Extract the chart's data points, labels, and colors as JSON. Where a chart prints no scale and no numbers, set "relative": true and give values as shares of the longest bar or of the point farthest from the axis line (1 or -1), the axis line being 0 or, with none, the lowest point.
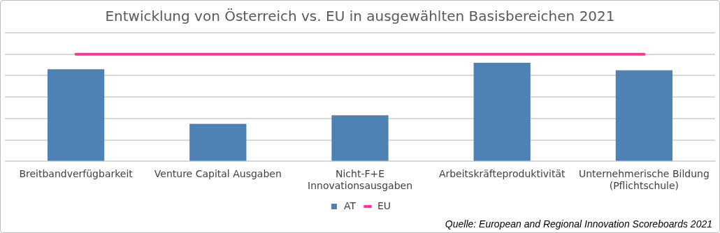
{
  "chart_data": {
    "type": "bar",
    "title": "Entwicklung von Österreich vs. EU in ausgewählten Basisbereichen 2021",
    "categories": [
      "Breitbandverfügbarkeit",
      "Venture Capital Ausgaben",
      "Nicht-F+E Innovationsausgaben",
      "Arbeitskräfteproduktivität",
      "Unternehmerische Bildung (Pflichtschule)"
    ],
    "series": [
      {
        "name": "AT",
        "color": "#4e81b4",
        "values": [
          0.86,
          0.35,
          0.43,
          0.92,
          0.85
        ]
      },
      {
        "name": "EU",
        "type": "line",
        "color": "#ff3399",
        "values": [
          1,
          1,
          1,
          1,
          1
        ]
      }
    ],
    "relative": true,
    "grid": "y",
    "legend": "bottom",
    "marker": "none",
    "annotations": [
      "Quelle: European and Regional Innovation Scoreboards 2021"
    ]
  }
}
